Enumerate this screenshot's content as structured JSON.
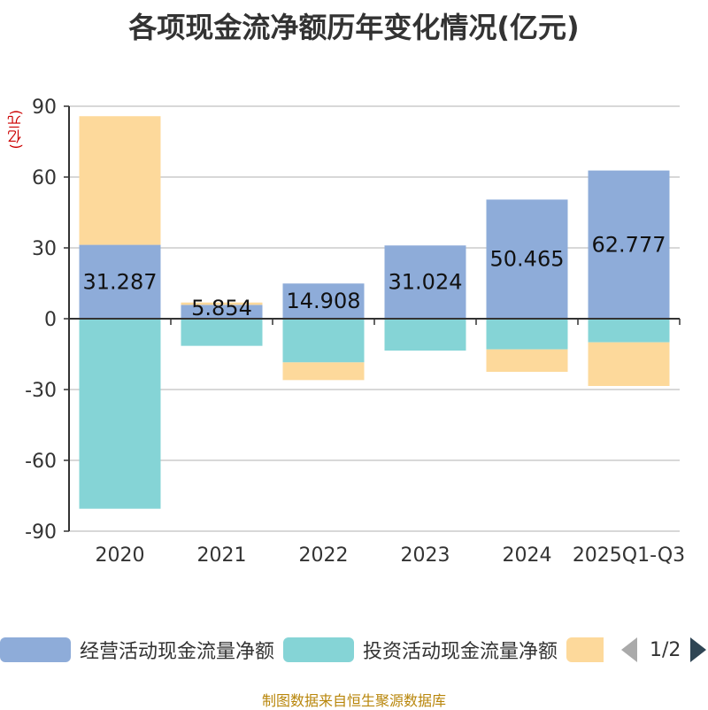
{
  "title": "各项现金流净额历年变化情况(亿元)",
  "unit_label": "(亿元)",
  "source": "制图数据来自恒生聚源数据库",
  "legend": {
    "items": [
      {
        "label": "经营活动现金流量净额",
        "color": "#8eacd9"
      },
      {
        "label": "投资活动现金流量净额",
        "color": "#85d4d6"
      },
      {
        "label": "",
        "color": "#fdd99b"
      }
    ],
    "page": "1/2"
  },
  "chart_data": {
    "type": "bar",
    "stacked": true,
    "categories": [
      "2020",
      "2021",
      "2022",
      "2023",
      "2024",
      "2025Q1-Q3"
    ],
    "ylim": [
      -90,
      90
    ],
    "yticks": [
      90,
      60,
      30,
      0,
      -30,
      -60,
      -90
    ],
    "grid": true,
    "series": [
      {
        "name": "经营活动现金流量净额",
        "color": "#8eacd9",
        "values": [
          31.287,
          5.854,
          14.908,
          31.024,
          50.465,
          62.777
        ],
        "labels": [
          "31.287",
          "5.854",
          "14.908",
          "31.024",
          "50.465",
          "62.777"
        ]
      },
      {
        "name": "投资活动现金流量净额",
        "color": "#85d4d6",
        "values": [
          -80.5,
          -11.5,
          -18.5,
          -13.5,
          -13.0,
          -10.0
        ]
      },
      {
        "name": "",
        "color": "#fdd99b",
        "values": [
          54.5,
          1.0,
          -7.5,
          0,
          -9.5,
          -18.5
        ]
      }
    ]
  }
}
